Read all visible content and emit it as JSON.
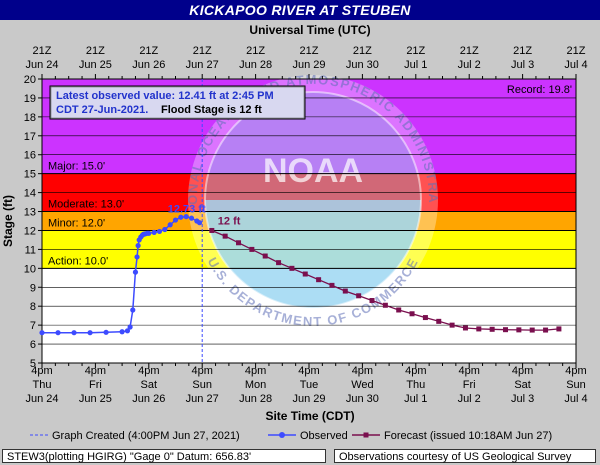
{
  "header": {
    "title": "KICKAPOO RIVER AT STEUBEN"
  },
  "chart_data": {
    "type": "line",
    "top_axis_title": "Universal Time (UTC)",
    "xlabel": "Site Time (CDT)",
    "ylabel": "Stage (ft)",
    "ylim": [
      5,
      20
    ],
    "yticks": [
      5,
      6,
      7,
      8,
      9,
      10,
      11,
      12,
      13,
      14,
      15,
      16,
      17,
      18,
      19,
      20
    ],
    "x_days": [
      {
        "day": "Thu",
        "date": "Jun 24",
        "utc_time": "21Z",
        "utc_date": "Jun 24"
      },
      {
        "day": "Fri",
        "date": "Jun 25",
        "utc_time": "21Z",
        "utc_date": "Jun 25"
      },
      {
        "day": "Sat",
        "date": "Jun 26",
        "utc_time": "21Z",
        "utc_date": "Jun 26"
      },
      {
        "day": "Sun",
        "date": "Jun 27",
        "utc_time": "21Z",
        "utc_date": "Jun 27"
      },
      {
        "day": "Mon",
        "date": "Jun 28",
        "utc_time": "21Z",
        "utc_date": "Jun 28"
      },
      {
        "day": "Tue",
        "date": "Jun 29",
        "utc_time": "21Z",
        "utc_date": "Jun 29"
      },
      {
        "day": "Wed",
        "date": "Jun 30",
        "utc_time": "21Z",
        "utc_date": "Jun 30"
      },
      {
        "day": "Thu",
        "date": "Jul 1",
        "utc_time": "21Z",
        "utc_date": "Jul 1"
      },
      {
        "day": "Fri",
        "date": "Jul 2",
        "utc_time": "21Z",
        "utc_date": "Jul 2"
      },
      {
        "day": "Sat",
        "date": "Jul 3",
        "utc_time": "21Z",
        "utc_date": "Jul 3"
      },
      {
        "day": "Sun",
        "date": "Jul 4",
        "utc_time": "21Z",
        "utc_date": "Jul 4"
      }
    ],
    "x_time_label": "4pm",
    "flood_categories": [
      {
        "name": "Action",
        "label": "Action: 10.0'",
        "from": 10,
        "to": 12,
        "color": "#ffff00"
      },
      {
        "name": "Minor",
        "label": "Minor: 12.0'",
        "from": 12,
        "to": 13,
        "color": "#ffa500"
      },
      {
        "name": "Moderate",
        "label": "Moderate: 13.0'",
        "from": 13,
        "to": 15,
        "color": "#ff0000"
      },
      {
        "name": "Major",
        "label": "Major: 15.0'",
        "from": 15,
        "to": 20,
        "color": "#cc33ff"
      }
    ],
    "record_label": "Record: 19.8'",
    "info_box": {
      "observed_line": "Latest observed value: 12.41 ft at 2:45 PM",
      "date_text": "CDT 27-Jun-2021.",
      "flood_stage_text": "Flood Stage is 12 ft"
    },
    "annotations": {
      "observed_peak": "12.73 ft",
      "forecast_start": "12 ft"
    },
    "graph_created_day": 3.0,
    "observed": {
      "name": "Observed",
      "x_days": [
        0.0,
        0.3,
        0.6,
        0.9,
        1.2,
        1.5,
        1.6,
        1.65,
        1.7,
        1.75,
        1.78,
        1.8,
        1.82,
        1.85,
        1.88,
        1.9,
        1.93,
        1.97,
        2.0,
        2.1,
        2.2,
        2.3,
        2.4,
        2.5,
        2.6,
        2.7,
        2.8,
        2.9,
        2.95
      ],
      "stage": [
        6.6,
        6.6,
        6.6,
        6.6,
        6.62,
        6.65,
        6.7,
        6.9,
        7.8,
        9.8,
        10.6,
        11.2,
        11.5,
        11.65,
        11.75,
        11.8,
        11.82,
        11.85,
        11.85,
        11.9,
        11.95,
        12.05,
        12.3,
        12.55,
        12.7,
        12.73,
        12.65,
        12.5,
        12.41
      ]
    },
    "forecast": {
      "name": "Forecast (issued 10:18AM Jun 27)",
      "x_days": [
        3.18,
        3.43,
        3.68,
        3.93,
        4.18,
        4.43,
        4.68,
        4.93,
        5.18,
        5.43,
        5.68,
        5.93,
        6.18,
        6.43,
        6.68,
        6.93,
        7.18,
        7.43,
        7.68,
        7.93,
        8.18,
        8.43,
        8.68,
        8.93,
        9.18,
        9.43,
        9.68
      ],
      "stage": [
        12.0,
        11.7,
        11.35,
        11.0,
        10.65,
        10.3,
        10.0,
        9.7,
        9.4,
        9.1,
        8.8,
        8.55,
        8.3,
        8.05,
        7.8,
        7.6,
        7.4,
        7.2,
        7.0,
        6.85,
        6.8,
        6.78,
        6.76,
        6.75,
        6.74,
        6.74,
        6.8
      ]
    },
    "legend": {
      "graph_created": "Graph Created (4:00PM Jun 27, 2021)",
      "observed": "Observed",
      "forecast": "Forecast (issued 10:18AM Jun 27)"
    },
    "watermark": {
      "logo": "NOAA",
      "ring_text": "NATIONAL OCEANIC AND ATMOSPHERIC ADMINISTRATION",
      "bottom_text": "U.S. DEPARTMENT OF COMMERCE"
    },
    "colors": {
      "observed": "#3d4bff",
      "forecast": "#7a0f4e",
      "border": "#000000"
    },
    "grid": true
  },
  "footer": {
    "left": "STEW3(plotting HGIRG) \"Gage 0\" Datum: 656.83'",
    "right": "Observations courtesy of US Geological Survey"
  }
}
